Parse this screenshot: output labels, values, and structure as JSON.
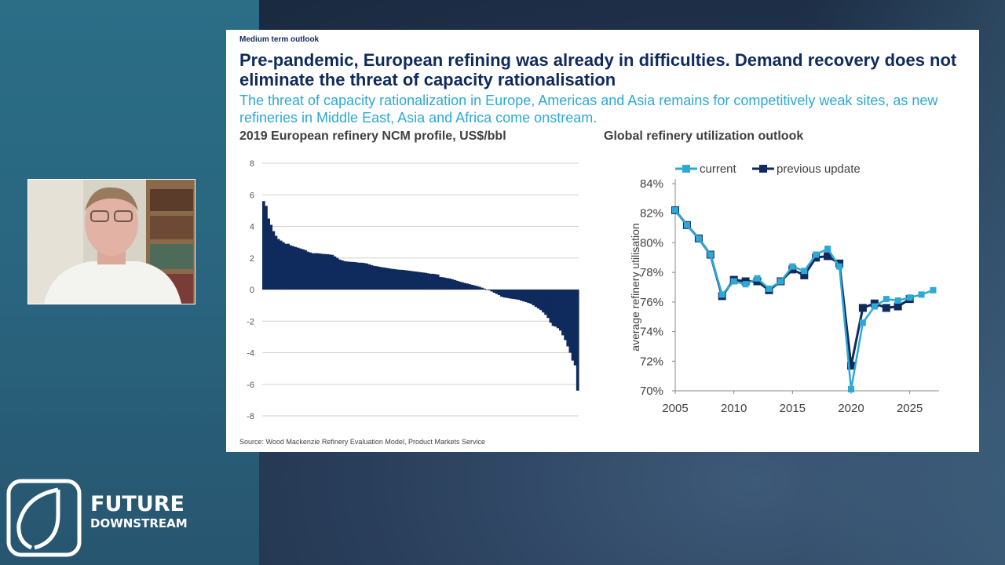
{
  "slide": {
    "kicker": "Medium term outlook",
    "title": "Pre-pandemic, European refining was already in difficulties. Demand recovery does not eliminate the threat of capacity rationalisation",
    "subtitle": "The threat of capacity rationalization in Europe, Americas and Asia remains for competitively weak sites, as new refineries in Middle East, Asia and Africa come onstream.",
    "source": "Source: Wood Mackenzie Refinery Evaluation Model, Product Markets Service"
  },
  "logo": {
    "line1": "FUTURE",
    "line2": "DOWNSTREAM"
  },
  "colors": {
    "navy": "#0f2a5c",
    "current": "#2ca9d6",
    "previous": "#0f2a5c"
  },
  "chart_data": [
    {
      "type": "bar",
      "title": "2019 European refinery NCM profile, US$/bbl",
      "xlabel": "",
      "ylabel": "",
      "ylim": [
        -8,
        8
      ],
      "yticks": [
        "8",
        "6",
        "4",
        "2",
        "0",
        "-2",
        "-4",
        "-6",
        "-8"
      ],
      "grid": true,
      "values": [
        5.6,
        5.3,
        4.5,
        4.1,
        3.7,
        3.4,
        3.2,
        3.1,
        3.0,
        2.9,
        2.9,
        2.8,
        2.75,
        2.7,
        2.65,
        2.6,
        2.55,
        2.5,
        2.4,
        2.35,
        2.3,
        2.3,
        2.3,
        2.28,
        2.26,
        2.25,
        2.24,
        2.22,
        2.2,
        2.1,
        2.0,
        1.9,
        1.85,
        1.8,
        1.78,
        1.76,
        1.75,
        1.74,
        1.72,
        1.7,
        1.7,
        1.68,
        1.65,
        1.6,
        1.55,
        1.5,
        1.48,
        1.45,
        1.42,
        1.4,
        1.37,
        1.35,
        1.32,
        1.3,
        1.28,
        1.26,
        1.25,
        1.24,
        1.22,
        1.2,
        1.18,
        1.16,
        1.14,
        1.12,
        1.1,
        1.08,
        1.06,
        1.03,
        1.0,
        1.0,
        0.98,
        0.95,
        0.8,
        0.78,
        0.75,
        0.72,
        0.7,
        0.65,
        0.6,
        0.55,
        0.5,
        0.46,
        0.42,
        0.38,
        0.34,
        0.3,
        0.26,
        0.22,
        0.18,
        0.12,
        0.06,
        0.0,
        -0.05,
        -0.12,
        -0.2,
        -0.28,
        -0.35,
        -0.45,
        -0.5,
        -0.52,
        -0.55,
        -0.58,
        -0.6,
        -0.62,
        -0.65,
        -0.7,
        -0.75,
        -0.8,
        -0.85,
        -0.9,
        -1.0,
        -1.1,
        -1.2,
        -1.3,
        -1.45,
        -1.6,
        -1.8,
        -2.1,
        -2.3,
        -2.35,
        -2.45,
        -2.6,
        -2.9,
        -3.2,
        -3.6,
        -4.0,
        -4.5,
        -4.8,
        -6.4
      ]
    },
    {
      "type": "line",
      "title": "Global refinery utilization outlook",
      "xlabel": "",
      "ylabel": "average refinery utilisation",
      "xlim": [
        2005,
        2027.5
      ],
      "ylim": [
        70,
        84
      ],
      "yticks": [
        "84%",
        "82%",
        "80%",
        "78%",
        "76%",
        "74%",
        "72%",
        "70%"
      ],
      "xticks": [
        "2005",
        "2010",
        "2015",
        "2020",
        "2025"
      ],
      "legend": "top",
      "x": [
        2005,
        2006,
        2007,
        2008,
        2009,
        2010,
        2011,
        2012,
        2013,
        2014,
        2015,
        2016,
        2017,
        2018,
        2019,
        2020,
        2021,
        2022,
        2023,
        2024,
        2025,
        2026,
        2027
      ],
      "series": [
        {
          "name": "current",
          "values": [
            82.2,
            81.2,
            80.3,
            79.2,
            76.5,
            77.4,
            77.2,
            77.6,
            76.9,
            77.4,
            78.4,
            78.1,
            79.2,
            79.6,
            78.4,
            70.1,
            74.6,
            75.7,
            76.2,
            76.1,
            76.3,
            76.5,
            76.8
          ]
        },
        {
          "name": "previous update",
          "values": [
            82.2,
            81.2,
            80.3,
            79.2,
            76.4,
            77.5,
            77.4,
            77.4,
            76.8,
            77.4,
            78.2,
            77.8,
            79.0,
            79.1,
            78.6,
            71.7,
            75.6,
            75.9,
            75.6,
            75.7,
            76.2,
            null,
            null
          ]
        }
      ]
    }
  ]
}
